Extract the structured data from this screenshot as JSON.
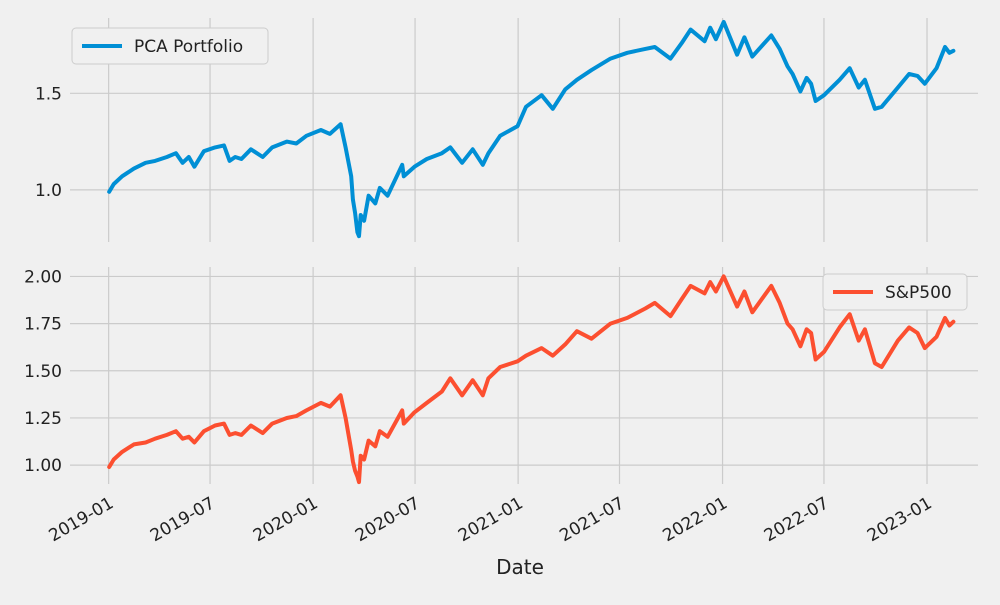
{
  "chart_data": [
    {
      "type": "line",
      "panel": "top",
      "x_axis": "date",
      "xlim": [
        "2018-10-24",
        "2023-04-02"
      ],
      "ylim": [
        0.73,
        1.89
      ],
      "yticks": [
        "1.0",
        "1.5"
      ],
      "grid": true,
      "legend_position": "top-left",
      "series": [
        {
          "name": "PCA Portfolio",
          "color": "#008fd5",
          "points": [
            [
              "2019-01-02",
              0.99
            ],
            [
              "2019-01-10",
              1.03
            ],
            [
              "2019-01-25",
              1.07
            ],
            [
              "2019-02-15",
              1.11
            ],
            [
              "2019-03-08",
              1.14
            ],
            [
              "2019-03-25",
              1.15
            ],
            [
              "2019-04-15",
              1.17
            ],
            [
              "2019-05-01",
              1.19
            ],
            [
              "2019-05-13",
              1.14
            ],
            [
              "2019-05-24",
              1.17
            ],
            [
              "2019-06-03",
              1.12
            ],
            [
              "2019-06-20",
              1.2
            ],
            [
              "2019-07-10",
              1.22
            ],
            [
              "2019-07-26",
              1.23
            ],
            [
              "2019-08-05",
              1.15
            ],
            [
              "2019-08-15",
              1.17
            ],
            [
              "2019-08-26",
              1.16
            ],
            [
              "2019-09-12",
              1.21
            ],
            [
              "2019-10-03",
              1.17
            ],
            [
              "2019-10-20",
              1.22
            ],
            [
              "2019-11-15",
              1.25
            ],
            [
              "2019-12-02",
              1.24
            ],
            [
              "2019-12-20",
              1.28
            ],
            [
              "2020-01-15",
              1.31
            ],
            [
              "2020-01-31",
              1.29
            ],
            [
              "2020-02-19",
              1.34
            ],
            [
              "2020-02-28",
              1.22
            ],
            [
              "2020-03-09",
              1.07
            ],
            [
              "2020-03-12",
              0.95
            ],
            [
              "2020-03-16",
              0.88
            ],
            [
              "2020-03-20",
              0.78
            ],
            [
              "2020-03-23",
              0.76
            ],
            [
              "2020-03-26",
              0.87
            ],
            [
              "2020-04-01",
              0.84
            ],
            [
              "2020-04-09",
              0.97
            ],
            [
              "2020-04-21",
              0.93
            ],
            [
              "2020-04-29",
              1.01
            ],
            [
              "2020-05-13",
              0.97
            ],
            [
              "2020-06-08",
              1.13
            ],
            [
              "2020-06-11",
              1.07
            ],
            [
              "2020-06-30",
              1.12
            ],
            [
              "2020-07-22",
              1.16
            ],
            [
              "2020-08-18",
              1.19
            ],
            [
              "2020-09-02",
              1.22
            ],
            [
              "2020-09-23",
              1.14
            ],
            [
              "2020-10-12",
              1.21
            ],
            [
              "2020-10-30",
              1.13
            ],
            [
              "2020-11-09",
              1.19
            ],
            [
              "2020-11-30",
              1.28
            ],
            [
              "2020-12-31",
              1.33
            ],
            [
              "2021-01-15",
              1.43
            ],
            [
              "2021-02-12",
              1.49
            ],
            [
              "2021-03-04",
              1.42
            ],
            [
              "2021-03-26",
              1.52
            ],
            [
              "2021-04-16",
              1.57
            ],
            [
              "2021-05-12",
              1.62
            ],
            [
              "2021-06-15",
              1.68
            ],
            [
              "2021-07-15",
              1.71
            ],
            [
              "2021-08-16",
              1.73
            ],
            [
              "2021-09-02",
              1.74
            ],
            [
              "2021-09-30",
              1.68
            ],
            [
              "2021-10-20",
              1.76
            ],
            [
              "2021-11-05",
              1.83
            ],
            [
              "2021-11-30",
              1.77
            ],
            [
              "2021-12-10",
              1.84
            ],
            [
              "2021-12-20",
              1.78
            ],
            [
              "2022-01-03",
              1.87
            ],
            [
              "2022-01-27",
              1.7
            ],
            [
              "2022-02-09",
              1.79
            ],
            [
              "2022-02-23",
              1.69
            ],
            [
              "2022-03-29",
              1.8
            ],
            [
              "2022-04-13",
              1.73
            ],
            [
              "2022-04-27",
              1.64
            ],
            [
              "2022-05-06",
              1.6
            ],
            [
              "2022-05-20",
              1.51
            ],
            [
              "2022-05-31",
              1.58
            ],
            [
              "2022-06-08",
              1.55
            ],
            [
              "2022-06-16",
              1.46
            ],
            [
              "2022-07-01",
              1.49
            ],
            [
              "2022-07-29",
              1.57
            ],
            [
              "2022-08-16",
              1.63
            ],
            [
              "2022-09-01",
              1.53
            ],
            [
              "2022-09-12",
              1.57
            ],
            [
              "2022-09-30",
              1.42
            ],
            [
              "2022-10-12",
              1.43
            ],
            [
              "2022-11-10",
              1.53
            ],
            [
              "2022-11-30",
              1.6
            ],
            [
              "2022-12-15",
              1.59
            ],
            [
              "2022-12-28",
              1.55
            ],
            [
              "2023-01-18",
              1.63
            ],
            [
              "2023-02-02",
              1.74
            ],
            [
              "2023-02-10",
              1.71
            ],
            [
              "2023-02-17",
              1.72
            ]
          ]
        }
      ]
    },
    {
      "type": "line",
      "panel": "bottom",
      "x_axis": "date",
      "xlim": [
        "2018-10-24",
        "2023-04-02"
      ],
      "ylim": [
        0.9,
        2.05
      ],
      "yticks": [
        "1.00",
        "1.25",
        "1.50",
        "1.75",
        "2.00"
      ],
      "grid": true,
      "legend_position": "top-right",
      "xlabel": "Date",
      "xtick_labels": [
        "2019-01",
        "2019-07",
        "2020-01",
        "2020-07",
        "2021-01",
        "2021-07",
        "2022-01",
        "2022-07",
        "2023-01"
      ],
      "series": [
        {
          "name": "S&P500",
          "color": "#fc4f30",
          "points": [
            [
              "2019-01-02",
              0.99
            ],
            [
              "2019-01-10",
              1.03
            ],
            [
              "2019-01-25",
              1.07
            ],
            [
              "2019-02-15",
              1.11
            ],
            [
              "2019-03-08",
              1.12
            ],
            [
              "2019-03-25",
              1.14
            ],
            [
              "2019-04-15",
              1.16
            ],
            [
              "2019-05-01",
              1.18
            ],
            [
              "2019-05-13",
              1.14
            ],
            [
              "2019-05-24",
              1.15
            ],
            [
              "2019-06-03",
              1.12
            ],
            [
              "2019-06-20",
              1.18
            ],
            [
              "2019-07-10",
              1.21
            ],
            [
              "2019-07-26",
              1.22
            ],
            [
              "2019-08-05",
              1.16
            ],
            [
              "2019-08-15",
              1.17
            ],
            [
              "2019-08-26",
              1.16
            ],
            [
              "2019-09-12",
              1.21
            ],
            [
              "2019-10-03",
              1.17
            ],
            [
              "2019-10-20",
              1.22
            ],
            [
              "2019-11-15",
              1.25
            ],
            [
              "2019-12-02",
              1.26
            ],
            [
              "2019-12-20",
              1.29
            ],
            [
              "2020-01-15",
              1.33
            ],
            [
              "2020-01-31",
              1.31
            ],
            [
              "2020-02-19",
              1.37
            ],
            [
              "2020-02-28",
              1.25
            ],
            [
              "2020-03-09",
              1.08
            ],
            [
              "2020-03-12",
              1.02
            ],
            [
              "2020-03-16",
              0.97
            ],
            [
              "2020-03-20",
              0.94
            ],
            [
              "2020-03-23",
              0.91
            ],
            [
              "2020-03-26",
              1.05
            ],
            [
              "2020-04-01",
              1.03
            ],
            [
              "2020-04-09",
              1.13
            ],
            [
              "2020-04-21",
              1.1
            ],
            [
              "2020-04-29",
              1.18
            ],
            [
              "2020-05-13",
              1.15
            ],
            [
              "2020-06-08",
              1.29
            ],
            [
              "2020-06-11",
              1.22
            ],
            [
              "2020-06-30",
              1.28
            ],
            [
              "2020-07-22",
              1.33
            ],
            [
              "2020-08-18",
              1.39
            ],
            [
              "2020-09-02",
              1.46
            ],
            [
              "2020-09-23",
              1.37
            ],
            [
              "2020-10-12",
              1.45
            ],
            [
              "2020-10-30",
              1.37
            ],
            [
              "2020-11-09",
              1.46
            ],
            [
              "2020-11-30",
              1.52
            ],
            [
              "2020-12-31",
              1.55
            ],
            [
              "2021-01-15",
              1.58
            ],
            [
              "2021-02-12",
              1.62
            ],
            [
              "2021-03-04",
              1.58
            ],
            [
              "2021-03-26",
              1.64
            ],
            [
              "2021-04-16",
              1.71
            ],
            [
              "2021-05-12",
              1.67
            ],
            [
              "2021-06-15",
              1.75
            ],
            [
              "2021-07-15",
              1.78
            ],
            [
              "2021-08-16",
              1.83
            ],
            [
              "2021-09-02",
              1.86
            ],
            [
              "2021-09-30",
              1.79
            ],
            [
              "2021-10-20",
              1.88
            ],
            [
              "2021-11-05",
              1.95
            ],
            [
              "2021-11-30",
              1.91
            ],
            [
              "2021-12-10",
              1.97
            ],
            [
              "2021-12-20",
              1.92
            ],
            [
              "2022-01-03",
              2.0
            ],
            [
              "2022-01-27",
              1.84
            ],
            [
              "2022-02-09",
              1.92
            ],
            [
              "2022-02-23",
              1.81
            ],
            [
              "2022-03-29",
              1.95
            ],
            [
              "2022-04-13",
              1.86
            ],
            [
              "2022-04-27",
              1.75
            ],
            [
              "2022-05-06",
              1.72
            ],
            [
              "2022-05-20",
              1.63
            ],
            [
              "2022-05-31",
              1.72
            ],
            [
              "2022-06-08",
              1.7
            ],
            [
              "2022-06-16",
              1.56
            ],
            [
              "2022-07-01",
              1.6
            ],
            [
              "2022-07-29",
              1.73
            ],
            [
              "2022-08-16",
              1.8
            ],
            [
              "2022-09-01",
              1.66
            ],
            [
              "2022-09-12",
              1.72
            ],
            [
              "2022-09-30",
              1.54
            ],
            [
              "2022-10-12",
              1.52
            ],
            [
              "2022-11-10",
              1.66
            ],
            [
              "2022-11-30",
              1.73
            ],
            [
              "2022-12-15",
              1.7
            ],
            [
              "2022-12-28",
              1.62
            ],
            [
              "2023-01-18",
              1.68
            ],
            [
              "2023-02-02",
              1.78
            ],
            [
              "2023-02-10",
              1.74
            ],
            [
              "2023-02-17",
              1.76
            ]
          ]
        }
      ]
    }
  ]
}
